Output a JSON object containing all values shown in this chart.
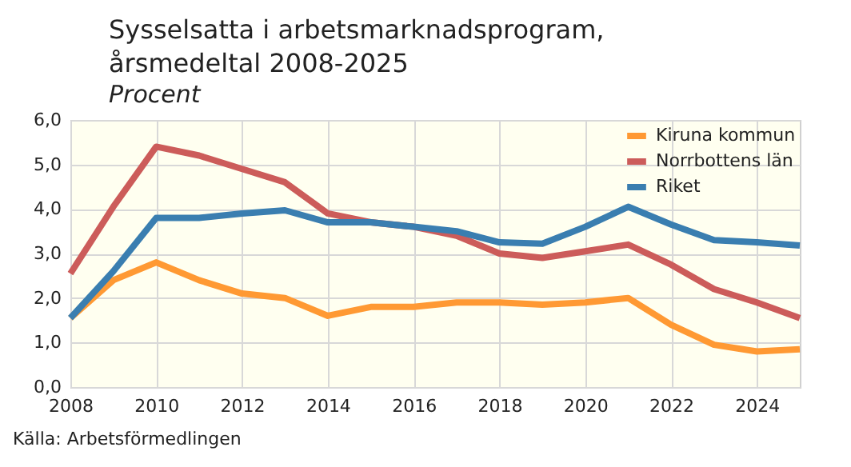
{
  "chart_data": {
    "type": "line",
    "title": "Sysselsatta i arbetsmarknadsprogram, årsmedeltal 2008-2025",
    "subtitle": "Procent",
    "annotations": [
      "Källa: Arbetsförmedlingen"
    ],
    "x": [
      2008,
      2009,
      2010,
      2011,
      2012,
      2013,
      2014,
      2015,
      2016,
      2017,
      2018,
      2019,
      2020,
      2021,
      2022,
      2023,
      2024,
      2025
    ],
    "series": [
      {
        "name": "Kiruna kommun",
        "color": "#ff9933",
        "values": [
          1.55,
          2.4,
          2.8,
          2.4,
          2.1,
          2.0,
          1.6,
          1.8,
          1.8,
          1.9,
          1.9,
          1.85,
          1.9,
          2.0,
          1.4,
          0.95,
          0.8,
          0.85
        ]
      },
      {
        "name": "Norrbottens län",
        "color": "#cc5c5a",
        "values": [
          2.55,
          4.05,
          5.4,
          5.2,
          4.9,
          4.6,
          3.9,
          3.7,
          3.6,
          3.4,
          3.0,
          2.9,
          3.05,
          3.2,
          2.75,
          2.2,
          1.9,
          1.55
        ]
      },
      {
        "name": "Riket",
        "color": "#3a7eb0",
        "values": [
          1.55,
          2.6,
          3.8,
          3.8,
          3.9,
          3.97,
          3.7,
          3.7,
          3.6,
          3.5,
          3.25,
          3.22,
          3.6,
          4.05,
          3.65,
          3.3,
          3.25,
          3.18
        ]
      }
    ],
    "xlim": [
      2008,
      2025
    ],
    "xticks": [
      2008,
      2010,
      2012,
      2014,
      2016,
      2018,
      2020,
      2022,
      2024
    ],
    "ylim": [
      0,
      6
    ],
    "yticks": [
      {
        "value": 0,
        "label": "0,0"
      },
      {
        "value": 1,
        "label": "1,0"
      },
      {
        "value": 2,
        "label": "2,0"
      },
      {
        "value": 3,
        "label": "3,0"
      },
      {
        "value": 4,
        "label": "4,0"
      },
      {
        "value": 5,
        "label": "5,0"
      },
      {
        "value": 6,
        "label": "6,0"
      }
    ],
    "grid": true,
    "legend": "top right",
    "marker": "none",
    "line_style": "solid"
  }
}
